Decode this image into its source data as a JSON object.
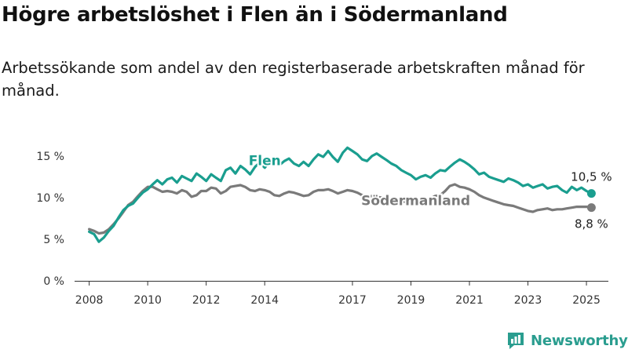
{
  "title": "Högre arbetslöshet i Flen än i Södermanland",
  "subtitle": "Arbetssökande som andel av den registerbaserade arbetskraften månad för månad.",
  "brand": {
    "name": "Newsworthy",
    "color": "#2a9d8f",
    "icon": "newsworthy-logo-icon"
  },
  "colors": {
    "Flen": "#1a9e8f",
    "Södermanland": "#7a7a7a",
    "baseline": "#333333"
  },
  "chart_data": {
    "type": "line",
    "y_ticks": [
      "0 %",
      "5 %",
      "10 %",
      "15 %"
    ],
    "y_tick_values": [
      0,
      5,
      10,
      15
    ],
    "ylim": [
      0,
      16.5
    ],
    "x_ticks": [
      "2008",
      "2010",
      "2012",
      "2014",
      "2017",
      "2019",
      "2021",
      "2023",
      "2025"
    ],
    "x_tick_values": [
      2008,
      2010,
      2012,
      2014,
      2017,
      2019,
      2021,
      2023,
      2025
    ],
    "xlim": [
      2007.5,
      2025.75
    ],
    "grid": false,
    "series": [
      {
        "name": "Flen",
        "label": "Flen",
        "end_label": "10,5 %",
        "points": [
          [
            2008.0,
            5.9
          ],
          [
            2008.17,
            5.6
          ],
          [
            2008.33,
            4.7
          ],
          [
            2008.5,
            5.2
          ],
          [
            2008.67,
            6.0
          ],
          [
            2008.83,
            6.6
          ],
          [
            2009.0,
            7.6
          ],
          [
            2009.17,
            8.5
          ],
          [
            2009.33,
            9.0
          ],
          [
            2009.5,
            9.3
          ],
          [
            2009.67,
            10.0
          ],
          [
            2009.83,
            10.6
          ],
          [
            2010.0,
            11.0
          ],
          [
            2010.17,
            11.6
          ],
          [
            2010.33,
            12.1
          ],
          [
            2010.5,
            11.6
          ],
          [
            2010.67,
            12.2
          ],
          [
            2010.83,
            12.4
          ],
          [
            2011.0,
            11.8
          ],
          [
            2011.17,
            12.6
          ],
          [
            2011.33,
            12.3
          ],
          [
            2011.5,
            12.0
          ],
          [
            2011.67,
            12.9
          ],
          [
            2011.83,
            12.5
          ],
          [
            2012.0,
            12.0
          ],
          [
            2012.17,
            12.8
          ],
          [
            2012.33,
            12.4
          ],
          [
            2012.5,
            12.0
          ],
          [
            2012.67,
            13.3
          ],
          [
            2012.83,
            13.6
          ],
          [
            2013.0,
            12.9
          ],
          [
            2013.17,
            13.8
          ],
          [
            2013.33,
            13.4
          ],
          [
            2013.5,
            12.8
          ],
          [
            2013.67,
            13.7
          ],
          [
            2013.83,
            14.2
          ],
          [
            2014.0,
            13.6
          ],
          [
            2014.17,
            14.3
          ],
          [
            2014.33,
            14.0
          ],
          [
            2014.5,
            13.9
          ],
          [
            2014.67,
            14.4
          ],
          [
            2014.83,
            14.7
          ],
          [
            2015.0,
            14.1
          ],
          [
            2015.17,
            13.8
          ],
          [
            2015.33,
            14.3
          ],
          [
            2015.5,
            13.8
          ],
          [
            2015.67,
            14.6
          ],
          [
            2015.83,
            15.2
          ],
          [
            2016.0,
            14.9
          ],
          [
            2016.17,
            15.6
          ],
          [
            2016.33,
            14.9
          ],
          [
            2016.5,
            14.3
          ],
          [
            2016.67,
            15.4
          ],
          [
            2016.83,
            16.0
          ],
          [
            2017.0,
            15.6
          ],
          [
            2017.17,
            15.2
          ],
          [
            2017.33,
            14.6
          ],
          [
            2017.5,
            14.4
          ],
          [
            2017.67,
            15.0
          ],
          [
            2017.83,
            15.3
          ],
          [
            2018.0,
            14.9
          ],
          [
            2018.17,
            14.5
          ],
          [
            2018.33,
            14.1
          ],
          [
            2018.5,
            13.8
          ],
          [
            2018.67,
            13.3
          ],
          [
            2018.83,
            13.0
          ],
          [
            2019.0,
            12.7
          ],
          [
            2019.17,
            12.2
          ],
          [
            2019.33,
            12.5
          ],
          [
            2019.5,
            12.7
          ],
          [
            2019.67,
            12.4
          ],
          [
            2019.83,
            12.9
          ],
          [
            2020.0,
            13.3
          ],
          [
            2020.17,
            13.2
          ],
          [
            2020.33,
            13.7
          ],
          [
            2020.5,
            14.2
          ],
          [
            2020.67,
            14.6
          ],
          [
            2020.83,
            14.3
          ],
          [
            2021.0,
            13.9
          ],
          [
            2021.17,
            13.4
          ],
          [
            2021.33,
            12.8
          ],
          [
            2021.5,
            13.0
          ],
          [
            2021.67,
            12.5
          ],
          [
            2021.83,
            12.3
          ],
          [
            2022.0,
            12.1
          ],
          [
            2022.17,
            11.9
          ],
          [
            2022.33,
            12.3
          ],
          [
            2022.5,
            12.1
          ],
          [
            2022.67,
            11.8
          ],
          [
            2022.83,
            11.4
          ],
          [
            2023.0,
            11.6
          ],
          [
            2023.17,
            11.2
          ],
          [
            2023.33,
            11.4
          ],
          [
            2023.5,
            11.6
          ],
          [
            2023.67,
            11.1
          ],
          [
            2023.83,
            11.3
          ],
          [
            2024.0,
            11.4
          ],
          [
            2024.17,
            10.9
          ],
          [
            2024.33,
            10.6
          ],
          [
            2024.5,
            11.3
          ],
          [
            2024.67,
            10.9
          ],
          [
            2024.83,
            11.2
          ],
          [
            2025.0,
            10.8
          ],
          [
            2025.17,
            10.5
          ]
        ]
      },
      {
        "name": "Södermanland",
        "label": "Södermanland",
        "end_label": "8,8 %",
        "points": [
          [
            2008.0,
            6.2
          ],
          [
            2008.17,
            6.0
          ],
          [
            2008.33,
            5.7
          ],
          [
            2008.5,
            5.8
          ],
          [
            2008.67,
            6.2
          ],
          [
            2008.83,
            6.8
          ],
          [
            2009.0,
            7.5
          ],
          [
            2009.17,
            8.3
          ],
          [
            2009.33,
            9.1
          ],
          [
            2009.5,
            9.5
          ],
          [
            2009.67,
            10.2
          ],
          [
            2009.83,
            10.8
          ],
          [
            2010.0,
            11.3
          ],
          [
            2010.17,
            11.3
          ],
          [
            2010.33,
            11.0
          ],
          [
            2010.5,
            10.7
          ],
          [
            2010.67,
            10.8
          ],
          [
            2010.83,
            10.7
          ],
          [
            2011.0,
            10.5
          ],
          [
            2011.17,
            10.9
          ],
          [
            2011.33,
            10.7
          ],
          [
            2011.5,
            10.1
          ],
          [
            2011.67,
            10.3
          ],
          [
            2011.83,
            10.8
          ],
          [
            2012.0,
            10.8
          ],
          [
            2012.17,
            11.2
          ],
          [
            2012.33,
            11.1
          ],
          [
            2012.5,
            10.5
          ],
          [
            2012.67,
            10.8
          ],
          [
            2012.83,
            11.3
          ],
          [
            2013.0,
            11.4
          ],
          [
            2013.17,
            11.5
          ],
          [
            2013.33,
            11.3
          ],
          [
            2013.5,
            10.9
          ],
          [
            2013.67,
            10.8
          ],
          [
            2013.83,
            11.0
          ],
          [
            2014.0,
            10.9
          ],
          [
            2014.17,
            10.7
          ],
          [
            2014.33,
            10.3
          ],
          [
            2014.5,
            10.2
          ],
          [
            2014.67,
            10.5
          ],
          [
            2014.83,
            10.7
          ],
          [
            2015.0,
            10.6
          ],
          [
            2015.17,
            10.4
          ],
          [
            2015.33,
            10.2
          ],
          [
            2015.5,
            10.3
          ],
          [
            2015.67,
            10.7
          ],
          [
            2015.83,
            10.9
          ],
          [
            2016.0,
            10.9
          ],
          [
            2016.17,
            11.0
          ],
          [
            2016.33,
            10.8
          ],
          [
            2016.5,
            10.5
          ],
          [
            2016.67,
            10.7
          ],
          [
            2016.83,
            10.9
          ],
          [
            2017.0,
            10.8
          ],
          [
            2017.17,
            10.6
          ],
          [
            2017.33,
            10.3
          ],
          [
            2017.5,
            10.1
          ],
          [
            2017.67,
            10.2
          ],
          [
            2017.83,
            10.1
          ],
          [
            2018.0,
            10.0
          ],
          [
            2018.17,
            9.9
          ],
          [
            2018.33,
            9.7
          ],
          [
            2018.5,
            9.6
          ],
          [
            2018.67,
            9.5
          ],
          [
            2018.83,
            9.5
          ],
          [
            2019.0,
            9.5
          ],
          [
            2019.17,
            9.5
          ],
          [
            2019.33,
            9.7
          ],
          [
            2019.5,
            9.8
          ],
          [
            2019.67,
            9.9
          ],
          [
            2019.83,
            10.2
          ],
          [
            2020.0,
            10.3
          ],
          [
            2020.17,
            10.8
          ],
          [
            2020.33,
            11.4
          ],
          [
            2020.5,
            11.6
          ],
          [
            2020.67,
            11.3
          ],
          [
            2020.83,
            11.2
          ],
          [
            2021.0,
            11.0
          ],
          [
            2021.17,
            10.7
          ],
          [
            2021.33,
            10.3
          ],
          [
            2021.5,
            10.0
          ],
          [
            2021.67,
            9.8
          ],
          [
            2021.83,
            9.6
          ],
          [
            2022.0,
            9.4
          ],
          [
            2022.17,
            9.2
          ],
          [
            2022.33,
            9.1
          ],
          [
            2022.5,
            9.0
          ],
          [
            2022.67,
            8.8
          ],
          [
            2022.83,
            8.6
          ],
          [
            2023.0,
            8.4
          ],
          [
            2023.17,
            8.3
          ],
          [
            2023.33,
            8.5
          ],
          [
            2023.5,
            8.6
          ],
          [
            2023.67,
            8.7
          ],
          [
            2023.83,
            8.5
          ],
          [
            2024.0,
            8.6
          ],
          [
            2024.17,
            8.6
          ],
          [
            2024.33,
            8.7
          ],
          [
            2024.5,
            8.8
          ],
          [
            2024.67,
            8.9
          ],
          [
            2024.83,
            8.9
          ],
          [
            2025.0,
            8.9
          ],
          [
            2025.17,
            8.8
          ]
        ]
      }
    ]
  }
}
